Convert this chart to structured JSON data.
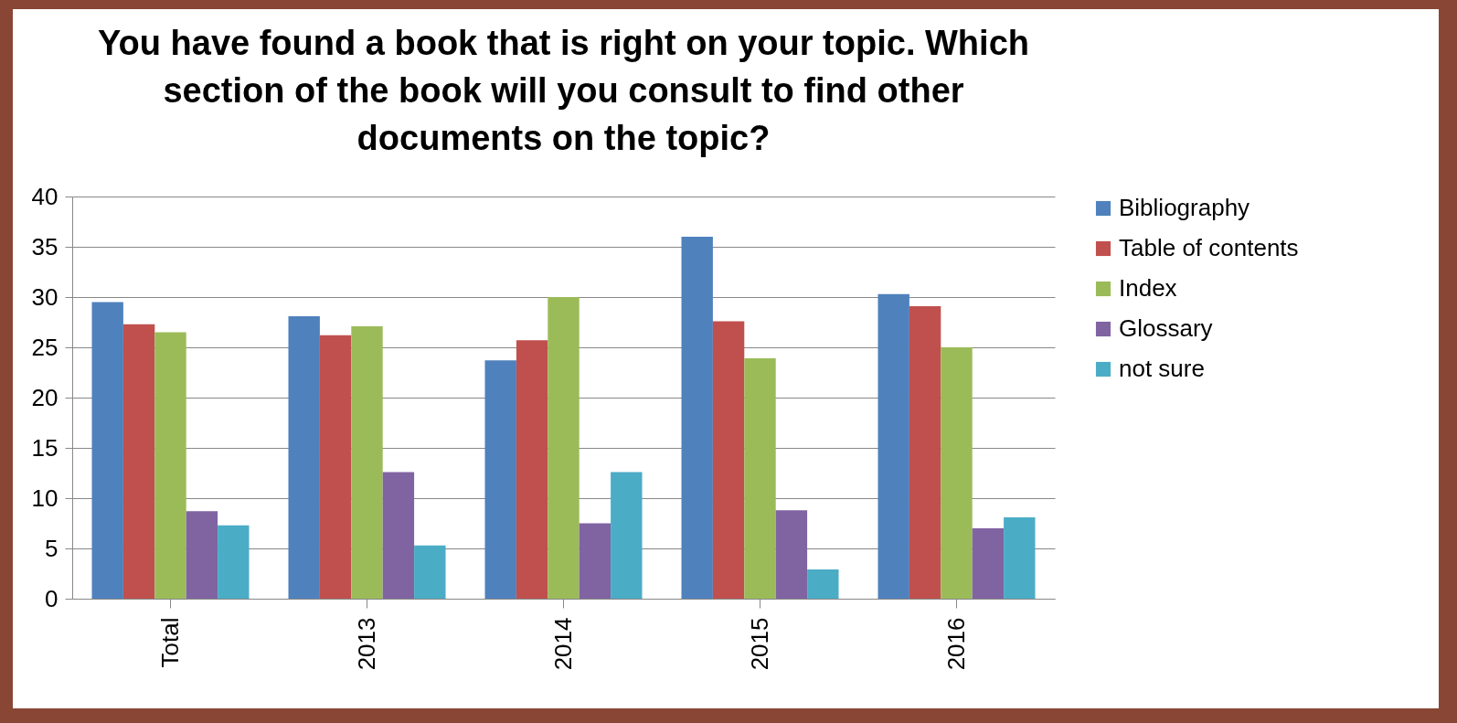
{
  "chart_data": {
    "type": "bar",
    "title": "You have found a book that is right on your topic. Which section of the book will you consult to find other documents on the topic?",
    "categories": [
      "Total",
      "2013",
      "2014",
      "2015",
      "2016"
    ],
    "series": [
      {
        "name": "Bibliography",
        "color": "#4f81bd",
        "values": [
          29.5,
          28.1,
          23.7,
          36.0,
          30.3
        ]
      },
      {
        "name": "Table of contents",
        "color": "#c0504d",
        "values": [
          27.3,
          26.2,
          25.7,
          27.6,
          29.1
        ]
      },
      {
        "name": "Index",
        "color": "#9bbb59",
        "values": [
          26.5,
          27.1,
          30.0,
          23.9,
          25.0
        ]
      },
      {
        "name": "Glossary",
        "color": "#8064a2",
        "values": [
          8.7,
          12.6,
          7.5,
          8.8,
          7.0
        ]
      },
      {
        "name": "not sure",
        "color": "#4bacc6",
        "values": [
          7.3,
          5.3,
          12.6,
          2.9,
          8.1
        ]
      }
    ],
    "ylim": [
      0,
      40
    ],
    "yticks": [
      0,
      5,
      10,
      15,
      20,
      25,
      30,
      35,
      40
    ],
    "grid": "y",
    "legend": "right"
  }
}
